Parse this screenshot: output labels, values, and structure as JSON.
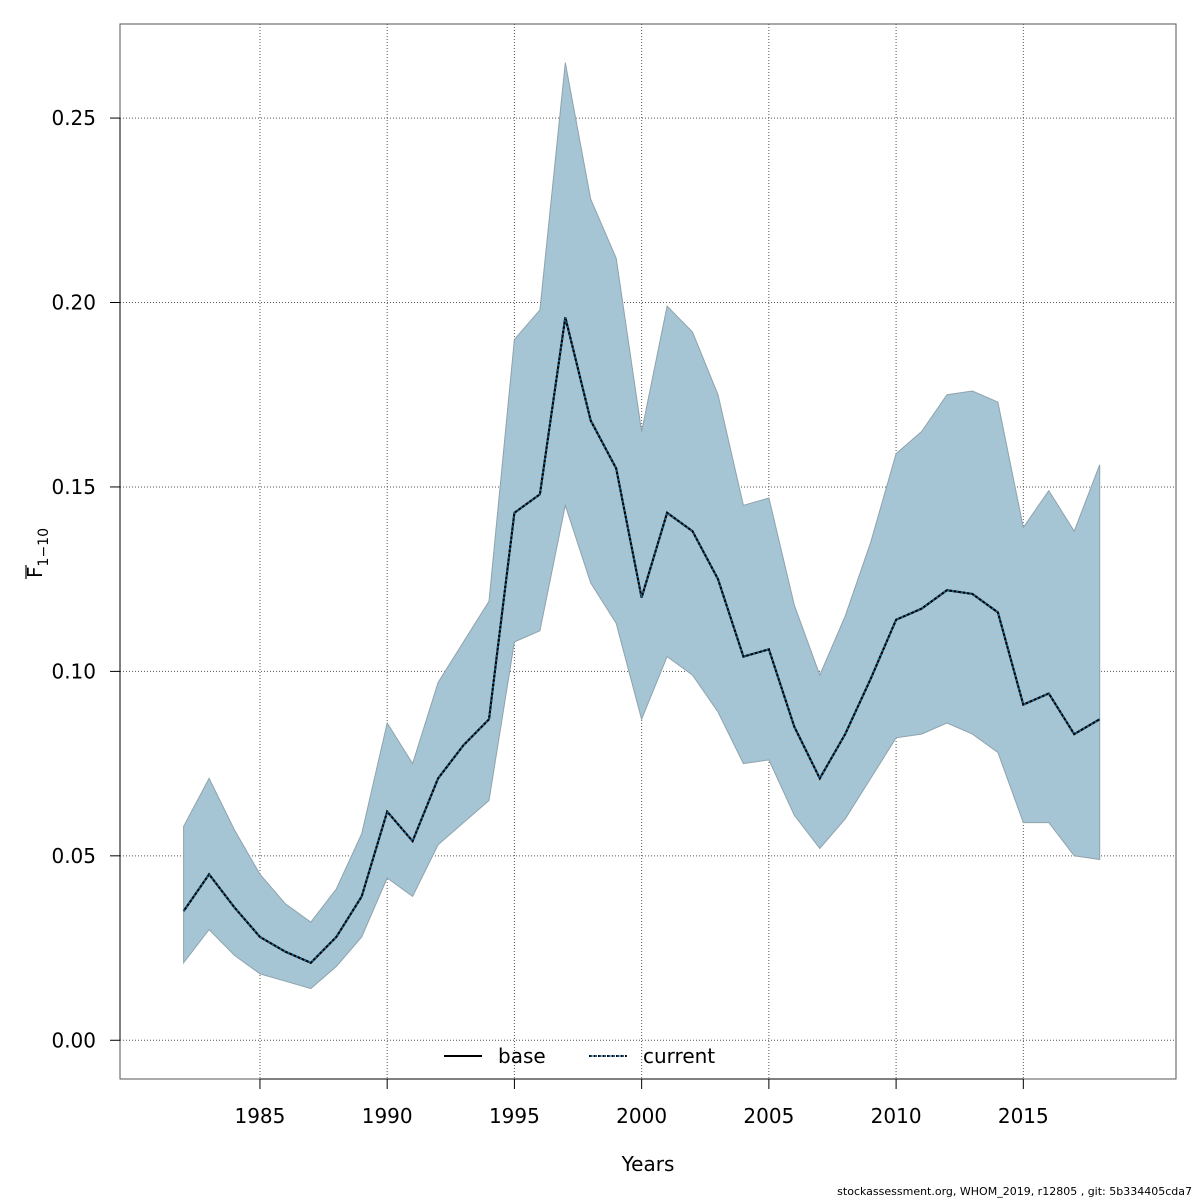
{
  "chart_data": {
    "type": "line",
    "xlabel": "Years",
    "ylabel": "F",
    "ylabel_sub": "1−10",
    "xlim": [
      1979.5,
      2021.0
    ],
    "ylim": [
      -0.0105,
      0.2755
    ],
    "xticks": [
      1985,
      1990,
      1995,
      2000,
      2005,
      2010,
      2015
    ],
    "yticks": [
      "0.00",
      "0.05",
      "0.10",
      "0.15",
      "0.20",
      "0.25"
    ],
    "grid": true,
    "legend": {
      "placement": "bottom-center",
      "entries": [
        {
          "label": "base",
          "style": "solid",
          "color": "#000000"
        },
        {
          "label": "current",
          "style": "dotted",
          "color": "#1a5f8a"
        }
      ]
    },
    "band_color": "#a5c4d4",
    "x": [
      1982,
      1983,
      1984,
      1985,
      1986,
      1987,
      1988,
      1989,
      1990,
      1991,
      1992,
      1993,
      1994,
      1995,
      1996,
      1997,
      1998,
      1999,
      2000,
      2001,
      2002,
      2003,
      2004,
      2005,
      2006,
      2007,
      2008,
      2009,
      2010,
      2011,
      2012,
      2013,
      2014,
      2015,
      2016,
      2017,
      2018
    ],
    "series": [
      {
        "name": "base",
        "values": [
          0.035,
          0.045,
          0.036,
          0.028,
          0.024,
          0.021,
          0.028,
          0.039,
          0.062,
          0.054,
          0.071,
          0.08,
          0.087,
          0.143,
          0.148,
          0.196,
          0.168,
          0.155,
          0.12,
          0.143,
          0.138,
          0.125,
          0.104,
          0.106,
          0.085,
          0.071,
          0.083,
          0.098,
          0.114,
          0.117,
          0.122,
          0.121,
          0.116,
          0.091,
          0.094,
          0.083,
          0.087
        ]
      },
      {
        "name": "current",
        "values": [
          0.035,
          0.045,
          0.036,
          0.028,
          0.024,
          0.021,
          0.028,
          0.039,
          0.062,
          0.054,
          0.071,
          0.08,
          0.087,
          0.143,
          0.148,
          0.196,
          0.168,
          0.155,
          0.12,
          0.143,
          0.138,
          0.125,
          0.104,
          0.106,
          0.085,
          0.071,
          0.083,
          0.098,
          0.114,
          0.117,
          0.122,
          0.121,
          0.116,
          0.091,
          0.094,
          0.083,
          0.087
        ]
      }
    ],
    "band_upper": [
      0.058,
      0.071,
      0.057,
      0.045,
      0.037,
      0.032,
      0.041,
      0.056,
      0.086,
      0.075,
      0.097,
      0.108,
      0.119,
      0.19,
      0.198,
      0.265,
      0.228,
      0.212,
      0.165,
      0.199,
      0.192,
      0.175,
      0.145,
      0.147,
      0.118,
      0.099,
      0.115,
      0.135,
      0.159,
      0.165,
      0.175,
      0.176,
      0.173,
      0.139,
      0.149,
      0.138,
      0.156
    ],
    "band_lower": [
      0.021,
      0.03,
      0.023,
      0.018,
      0.016,
      0.014,
      0.02,
      0.028,
      0.044,
      0.039,
      0.053,
      0.059,
      0.065,
      0.108,
      0.111,
      0.145,
      0.124,
      0.113,
      0.087,
      0.104,
      0.099,
      0.089,
      0.075,
      0.076,
      0.061,
      0.052,
      0.06,
      0.071,
      0.082,
      0.083,
      0.086,
      0.083,
      0.078,
      0.059,
      0.059,
      0.05,
      0.049
    ]
  },
  "footer": "stockassessment.org, WHOM_2019, r12805 , git: 5b334405cda7"
}
